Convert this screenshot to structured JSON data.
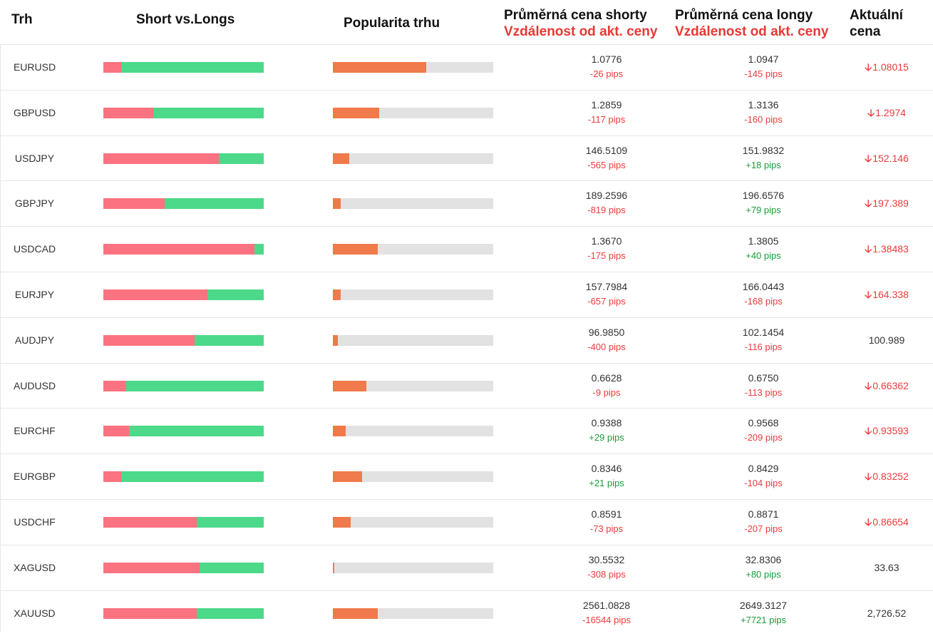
{
  "header": {
    "market": "Trh",
    "short_vs_longs": "Short vs.Longs",
    "popularity": "Popularita trhu",
    "avg_short": "Průměrná cena shorty",
    "avg_short_sub": "Vzdálenost od akt. ceny",
    "avg_long": "Průměrná cena longy",
    "avg_long_sub": "Vzdálenost od akt. ceny",
    "current_price_line1": "Aktuální",
    "current_price_line2": "cena"
  },
  "colors": {
    "short": "#fb7281",
    "long": "#4cd98a",
    "popularity": "#f07a4b",
    "track": "#e2e2e2",
    "negative": "#f03a3a",
    "positive": "#1a9a3a"
  },
  "rows": [
    {
      "symbol": "EURUSD",
      "short_pct": 11,
      "popularity_pct": 58,
      "avg_short": "1.0776",
      "short_pips": "-26 pips",
      "avg_long": "1.0947",
      "long_pips": "-145 pips",
      "current": "1.08015",
      "trend": "down"
    },
    {
      "symbol": "GBPUSD",
      "short_pct": 31,
      "popularity_pct": 29,
      "avg_short": "1.2859",
      "short_pips": "-117 pips",
      "avg_long": "1.3136",
      "long_pips": "-160 pips",
      "current": "1.2974",
      "trend": "down"
    },
    {
      "symbol": "USDJPY",
      "short_pct": 72,
      "popularity_pct": 10,
      "avg_short": "146.5109",
      "short_pips": "-565 pips",
      "avg_long": "151.9832",
      "long_pips": "+18 pips",
      "current": "152.146",
      "trend": "down"
    },
    {
      "symbol": "GBPJPY",
      "short_pct": 38,
      "popularity_pct": 5,
      "avg_short": "189.2596",
      "short_pips": "-819 pips",
      "avg_long": "196.6576",
      "long_pips": "+79 pips",
      "current": "197.389",
      "trend": "down"
    },
    {
      "symbol": "USDCAD",
      "short_pct": 94,
      "popularity_pct": 28,
      "avg_short": "1.3670",
      "short_pips": "-175 pips",
      "avg_long": "1.3805",
      "long_pips": "+40 pips",
      "current": "1.38483",
      "trend": "down"
    },
    {
      "symbol": "EURJPY",
      "short_pct": 65,
      "popularity_pct": 5,
      "avg_short": "157.7984",
      "short_pips": "-657 pips",
      "avg_long": "166.0443",
      "long_pips": "-168 pips",
      "current": "164.338",
      "trend": "down"
    },
    {
      "symbol": "AUDJPY",
      "short_pct": 57,
      "popularity_pct": 3,
      "avg_short": "96.9850",
      "short_pips": "-400 pips",
      "avg_long": "102.1454",
      "long_pips": "-116 pips",
      "current": "100.989",
      "trend": "none"
    },
    {
      "symbol": "AUDUSD",
      "short_pct": 14,
      "popularity_pct": 21,
      "avg_short": "0.6628",
      "short_pips": "-9 pips",
      "avg_long": "0.6750",
      "long_pips": "-113 pips",
      "current": "0.66362",
      "trend": "down"
    },
    {
      "symbol": "EURCHF",
      "short_pct": 16,
      "popularity_pct": 8,
      "avg_short": "0.9388",
      "short_pips": "+29 pips",
      "avg_long": "0.9568",
      "long_pips": "-209 pips",
      "current": "0.93593",
      "trend": "down"
    },
    {
      "symbol": "EURGBP",
      "short_pct": 11,
      "popularity_pct": 18,
      "avg_short": "0.8346",
      "short_pips": "+21 pips",
      "avg_long": "0.8429",
      "long_pips": "-104 pips",
      "current": "0.83252",
      "trend": "down"
    },
    {
      "symbol": "USDCHF",
      "short_pct": 58,
      "popularity_pct": 11,
      "avg_short": "0.8591",
      "short_pips": "-73 pips",
      "avg_long": "0.8871",
      "long_pips": "-207 pips",
      "current": "0.86654",
      "trend": "down"
    },
    {
      "symbol": "XAGUSD",
      "short_pct": 60,
      "popularity_pct": 1,
      "avg_short": "30.5532",
      "short_pips": "-308 pips",
      "avg_long": "32.8306",
      "long_pips": "+80 pips",
      "current": "33.63",
      "trend": "none"
    },
    {
      "symbol": "XAUUSD",
      "short_pct": 58,
      "popularity_pct": 28,
      "avg_short": "2561.0828",
      "short_pips": "-16544 pips",
      "avg_long": "2649.3127",
      "long_pips": "+7721 pips",
      "current": "2,726.52",
      "trend": "none"
    }
  ]
}
